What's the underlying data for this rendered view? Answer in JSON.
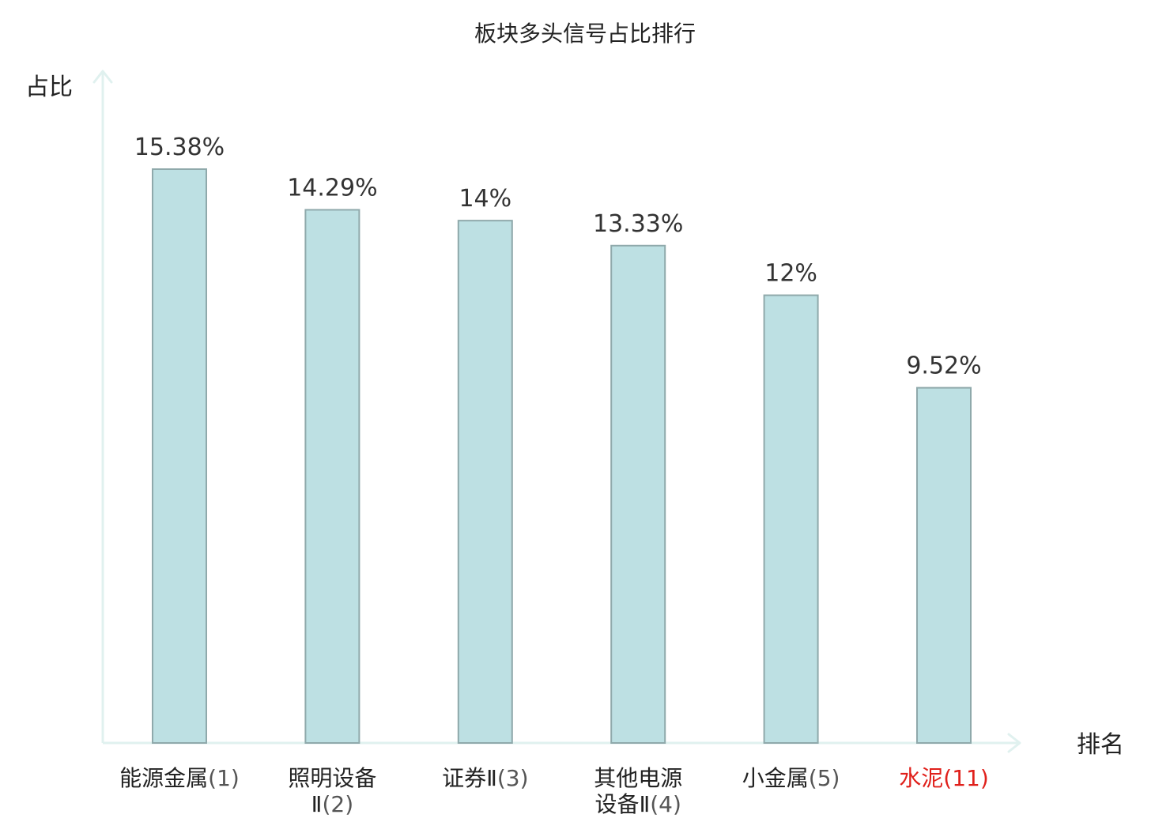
{
  "chart_data": {
    "type": "bar",
    "title": "板块多头信号占比排行",
    "ylabel": "占比",
    "xlabel": "排名",
    "ylim": [
      0,
      16.5
    ],
    "grid": false,
    "legend": "none",
    "value_suffix": "%",
    "colors": {
      "bar_fill": "#bde0e3",
      "bar_stroke": "#8fa9ab",
      "axis": "#e0f1ef",
      "text": "#222222",
      "highlight_text": "#e0201b"
    },
    "categories": [
      {
        "lines": [
          "能源金属"
        ],
        "rank": "(1)",
        "value": 15.38,
        "label": "15.38%",
        "highlight": false
      },
      {
        "lines": [
          "照明设备",
          "Ⅱ"
        ],
        "rank": "(2)",
        "value": 14.29,
        "label": "14.29%",
        "highlight": false
      },
      {
        "lines": [
          "证券Ⅱ"
        ],
        "rank": "(3)",
        "value": 14,
        "label": "14%",
        "highlight": false
      },
      {
        "lines": [
          "其他电源",
          "设备Ⅱ"
        ],
        "rank": "(4)",
        "value": 13.33,
        "label": "13.33%",
        "highlight": false
      },
      {
        "lines": [
          "小金属"
        ],
        "rank": "(5)",
        "value": 12,
        "label": "12%",
        "highlight": false
      },
      {
        "lines": [
          "水泥"
        ],
        "rank": "(11)",
        "value": 9.52,
        "label": "9.52%",
        "highlight": true
      }
    ]
  }
}
